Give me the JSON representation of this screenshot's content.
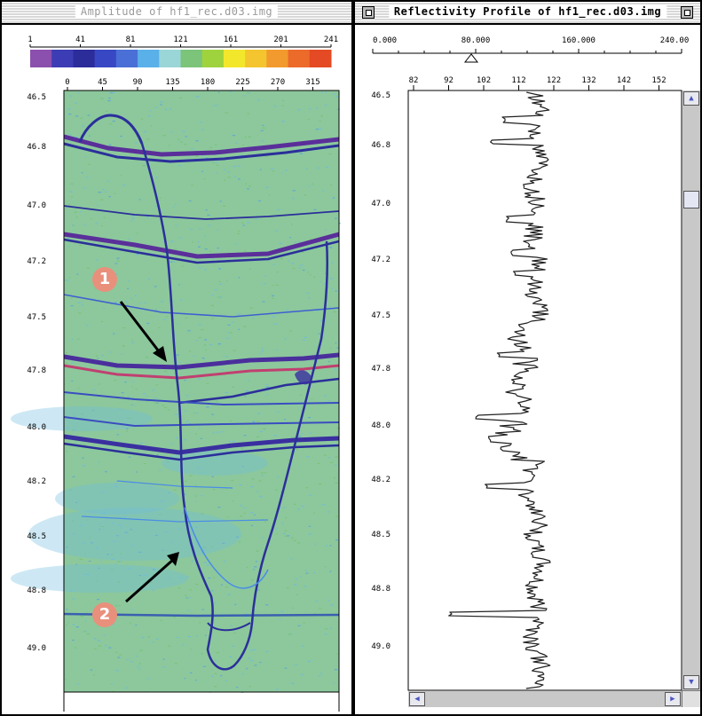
{
  "left_window": {
    "title": "Amplitude of hf1_rec.d03.img",
    "colorbar_ticks": [
      "1",
      "41",
      "81",
      "121",
      "161",
      "201",
      "241"
    ],
    "colorbar_colors": [
      "#8b4fae",
      "#3c3db4",
      "#2c2d9b",
      "#3848c4",
      "#4a6fd6",
      "#5ab0e8",
      "#9ad6d8",
      "#7cc47a",
      "#9fd33e",
      "#f3e72c",
      "#f4c52f",
      "#f29a2d",
      "#ec6a2a",
      "#e44a24"
    ],
    "x_ticks": [
      "0",
      "45",
      "90",
      "135",
      "180",
      "225",
      "270",
      "315"
    ],
    "y_ticks": [
      "46.5",
      "46.8",
      "47.0",
      "47.2",
      "47.5",
      "47.8",
      "48.0",
      "48.2",
      "48.5",
      "48.8",
      "49.0"
    ],
    "annotations": [
      "1",
      "2"
    ]
  },
  "right_window": {
    "title": "Reflectivity Profile of hf1_rec.d03.img",
    "range_ticks": [
      "0.000",
      "80.000",
      "160.000",
      "240.00"
    ],
    "x_ticks": [
      "82",
      "92",
      "102",
      "112",
      "122",
      "132",
      "142",
      "152"
    ],
    "y_ticks": [
      "46.5",
      "46.8",
      "47.0",
      "47.2",
      "47.5",
      "47.8",
      "48.0",
      "48.2",
      "48.5",
      "48.8",
      "49.0"
    ]
  },
  "colors": {
    "background_field": "#8cc89c",
    "reflector_dark": "#2b2f9a",
    "reflector_light": "#4a8de6",
    "profile_line": "#222222"
  }
}
